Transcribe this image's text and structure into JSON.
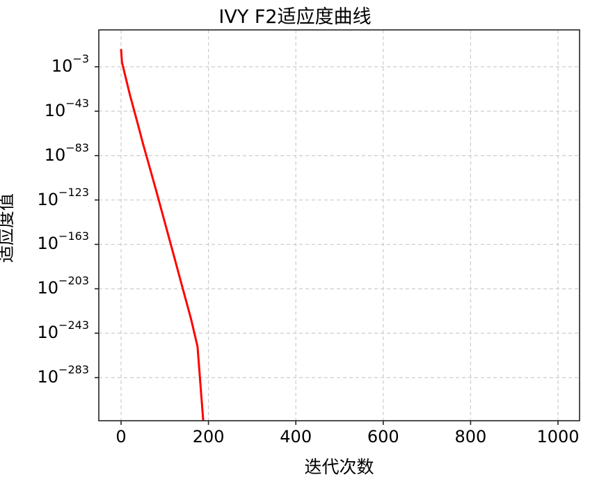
{
  "chart_data": {
    "type": "line",
    "title": "IVY F2适应度曲线",
    "xlabel": "迭代次数",
    "ylabel": "适应度值",
    "xscale": "linear",
    "yscale": "log",
    "xlim": [
      -50,
      1050
    ],
    "ylim_exponent": [
      -322,
      30
    ],
    "x_ticks": [
      0,
      200,
      400,
      600,
      800,
      1000
    ],
    "x_tick_labels": [
      "0",
      "200",
      "400",
      "600",
      "800",
      "1000"
    ],
    "y_ticks_exponent": [
      -3,
      -43,
      -83,
      -123,
      -163,
      -203,
      -243,
      -283
    ],
    "y_tick_labels": [
      "10^-3",
      "10^-43",
      "10^-83",
      "10^-123",
      "10^-163",
      "10^-203",
      "10^-243",
      "10^-283"
    ],
    "grid": true,
    "grid_style": "dashed",
    "legend": null,
    "series": [
      {
        "name": "IVY F2",
        "color": "#ff0000",
        "x": [
          0,
          2,
          20,
          40,
          50,
          60,
          80,
          100,
          120,
          140,
          160,
          175,
          188
        ],
        "log10_y": [
          13,
          1,
          -28,
          -57,
          -72,
          -86,
          -114,
          -143,
          -172,
          -201,
          -230,
          -255,
          -322
        ]
      }
    ]
  },
  "colors": {
    "line": "#ff0000",
    "axes": "#222222",
    "grid": "#cccccc"
  }
}
